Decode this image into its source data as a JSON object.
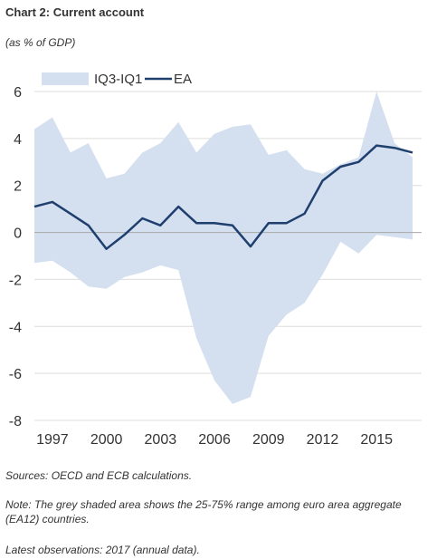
{
  "header": {
    "title": "Chart 2: Current account",
    "subtitle": "(as % of GDP)"
  },
  "footer": {
    "sources": "Sources: OECD and ECB calculations.",
    "note": "Note: The grey shaded area shows the 25-75% range among euro area aggregate (EA12) countries.",
    "latest": "Latest observations: 2017 (annual data)."
  },
  "chart_data": {
    "type": "area",
    "x": [
      1996,
      1997,
      1998,
      1999,
      2000,
      2001,
      2002,
      2003,
      2004,
      2005,
      2006,
      2007,
      2008,
      2009,
      2010,
      2011,
      2012,
      2013,
      2014,
      2015,
      2016,
      2017
    ],
    "xlim": [
      1996,
      2017
    ],
    "ylim": [
      -8,
      6
    ],
    "x_ticks": [
      1997,
      2000,
      2003,
      2006,
      2009,
      2012,
      2015
    ],
    "y_ticks": [
      6,
      4,
      2,
      0,
      -2,
      -4,
      -6,
      -8
    ],
    "grid": true,
    "legend": "top-left",
    "series": [
      {
        "name": "IQ3-IQ1",
        "kind": "band",
        "color": "#d4e0ef",
        "upper": [
          4.4,
          4.9,
          3.4,
          3.8,
          2.3,
          2.5,
          3.4,
          3.8,
          4.7,
          3.4,
          4.2,
          4.5,
          4.6,
          3.3,
          3.5,
          2.7,
          2.5,
          2.9,
          3.2,
          6.0,
          3.8,
          3.2
        ],
        "lower": [
          -1.3,
          -1.2,
          -1.7,
          -2.3,
          -2.4,
          -1.9,
          -1.7,
          -1.4,
          -1.6,
          -4.5,
          -6.3,
          -7.3,
          -7.0,
          -4.4,
          -3.5,
          -3.0,
          -1.8,
          -0.4,
          -0.9,
          -0.1,
          -0.2,
          -0.3
        ]
      },
      {
        "name": "EA",
        "kind": "line",
        "color": "#1f3f6e",
        "values": [
          1.1,
          1.3,
          0.8,
          0.3,
          -0.7,
          -0.1,
          0.6,
          0.3,
          1.1,
          0.4,
          0.4,
          0.3,
          -0.6,
          0.4,
          0.4,
          0.8,
          2.2,
          2.8,
          3.0,
          3.7,
          3.6,
          3.4
        ]
      }
    ]
  }
}
